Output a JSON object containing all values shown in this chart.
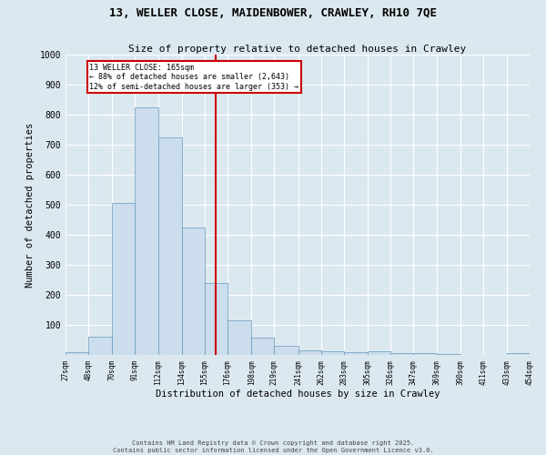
{
  "title_line1": "13, WELLER CLOSE, MAIDENBOWER, CRAWLEY, RH10 7QE",
  "title_line2": "Size of property relative to detached houses in Crawley",
  "xlabel": "Distribution of detached houses by size in Crawley",
  "ylabel": "Number of detached properties",
  "bar_color": "#ccdded",
  "bar_edge_color": "#6699bb",
  "background_color": "#dce8f0",
  "fig_background_color": "#dce8f0",
  "grid_color": "#ffffff",
  "bins": [
    27,
    48,
    70,
    91,
    112,
    134,
    155,
    176,
    198,
    219,
    241,
    262,
    283,
    305,
    326,
    347,
    369,
    390,
    411,
    433,
    454
  ],
  "counts": [
    8,
    60,
    505,
    825,
    725,
    425,
    240,
    115,
    57,
    30,
    15,
    12,
    10,
    13,
    7,
    5,
    3,
    1,
    0,
    5
  ],
  "tick_labels": [
    "27sqm",
    "48sqm",
    "70sqm",
    "91sqm",
    "112sqm",
    "134sqm",
    "155sqm",
    "176sqm",
    "198sqm",
    "219sqm",
    "241sqm",
    "262sqm",
    "283sqm",
    "305sqm",
    "326sqm",
    "347sqm",
    "369sqm",
    "390sqm",
    "411sqm",
    "433sqm",
    "454sqm"
  ],
  "vline_x": 165,
  "vline_color": "#cc0000",
  "annotation_text": "13 WELLER CLOSE: 165sqm\n← 88% of detached houses are smaller (2,643)\n12% of semi-detached houses are larger (353) →",
  "annotation_box_color": "#cc0000",
  "ylim": [
    0,
    1000
  ],
  "yticks": [
    0,
    100,
    200,
    300,
    400,
    500,
    600,
    700,
    800,
    900,
    1000
  ],
  "footer_line1": "Contains HM Land Registry data © Crown copyright and database right 2025.",
  "footer_line2": "Contains public sector information licensed under the Open Government Licence v3.0."
}
